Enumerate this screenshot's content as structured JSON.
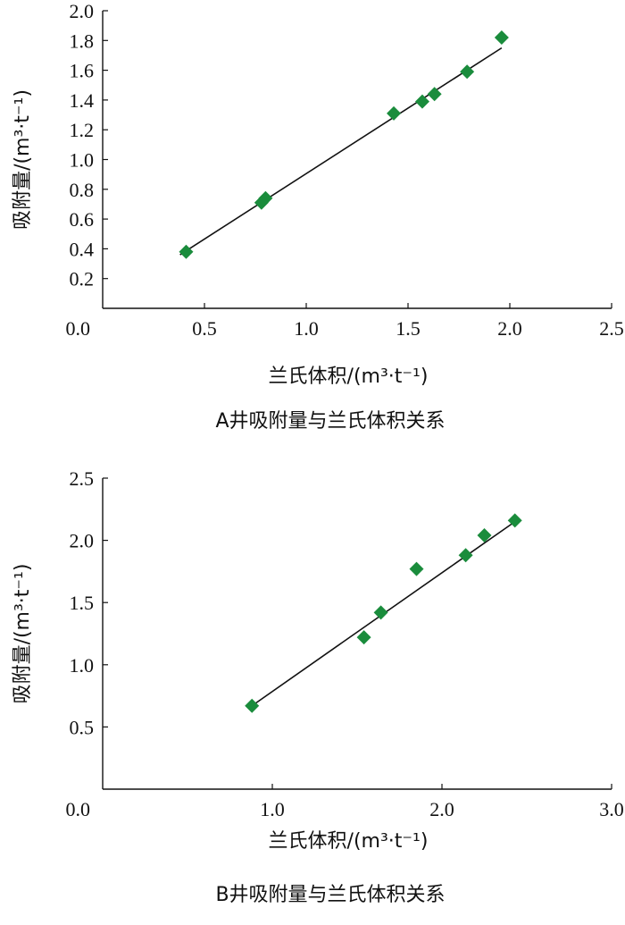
{
  "chart_data": [
    {
      "type": "scatter",
      "title": "A井吸附量与兰氏体积关系",
      "xlabel": "兰氏体积/(m³·t⁻¹)",
      "ylabel": "吸附量/(m³·t⁻¹)",
      "xlim": [
        0,
        2.5
      ],
      "ylim": [
        0,
        2.0
      ],
      "x_ticks": [
        "0.0",
        "0.5",
        "1.0",
        "1.5",
        "2.0",
        "2.5"
      ],
      "y_ticks": [
        "0.2",
        "0.4",
        "0.6",
        "0.8",
        "1.0",
        "1.2",
        "1.4",
        "1.6",
        "1.8",
        "2.0"
      ],
      "origin_label": "0.0",
      "grid": false,
      "marker_color": "#1a8c3c",
      "marker_shape": "diamond",
      "points": [
        {
          "x": 0.41,
          "y": 0.38
        },
        {
          "x": 0.78,
          "y": 0.71
        },
        {
          "x": 0.8,
          "y": 0.74
        },
        {
          "x": 1.43,
          "y": 1.31
        },
        {
          "x": 1.57,
          "y": 1.39
        },
        {
          "x": 1.63,
          "y": 1.44
        },
        {
          "x": 1.79,
          "y": 1.59
        },
        {
          "x": 1.96,
          "y": 1.82
        }
      ],
      "fit_line": {
        "x": [
          0.38,
          1.96
        ],
        "y": [
          0.36,
          1.75
        ]
      }
    },
    {
      "type": "scatter",
      "title": "B井吸附量与兰氏体积关系",
      "xlabel": "兰氏体积/(m³·t⁻¹)",
      "ylabel": "吸附量/(m³·t⁻¹)",
      "xlim": [
        0,
        3.0
      ],
      "ylim": [
        0,
        2.5
      ],
      "x_ticks": [
        "0.0",
        "1.0",
        "2.0",
        "3.0"
      ],
      "y_ticks": [
        "0.5",
        "1.0",
        "1.5",
        "2.0",
        "2.5"
      ],
      "origin_label": "0.0",
      "grid": false,
      "marker_color": "#1a8c3c",
      "marker_shape": "diamond",
      "points": [
        {
          "x": 0.88,
          "y": 0.67
        },
        {
          "x": 1.54,
          "y": 1.22
        },
        {
          "x": 1.64,
          "y": 1.42
        },
        {
          "x": 1.85,
          "y": 1.77
        },
        {
          "x": 2.14,
          "y": 1.88
        },
        {
          "x": 2.25,
          "y": 2.04
        },
        {
          "x": 2.43,
          "y": 2.16
        }
      ],
      "fit_line": {
        "x": [
          0.89,
          2.43
        ],
        "y": [
          0.68,
          2.15
        ]
      }
    }
  ]
}
